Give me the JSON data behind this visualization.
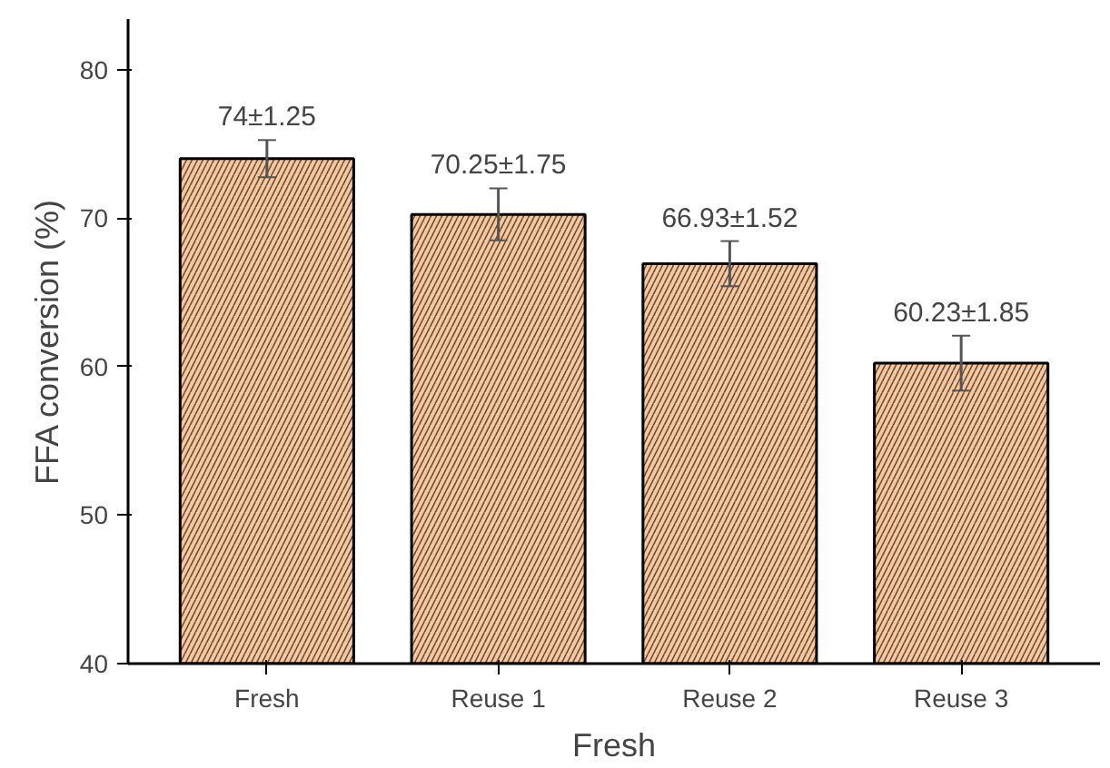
{
  "chart_data": {
    "type": "bar",
    "xlabel": "Fresh",
    "ylabel": "FFA conversion (%)",
    "categories": [
      "Fresh",
      "Reuse 1",
      "Reuse 2",
      "Reuse 3"
    ],
    "values": [
      74,
      70.25,
      66.93,
      60.23
    ],
    "errors": [
      1.25,
      1.75,
      1.52,
      1.85
    ],
    "value_labels": [
      "74±1.25",
      "70.25±1.75",
      "66.93±1.52",
      "60.23±1.85"
    ],
    "color": "#f4c8a0",
    "ylim": [
      40,
      83.4
    ],
    "yticks": [
      40,
      50,
      60,
      70,
      80
    ],
    "grid": false
  }
}
